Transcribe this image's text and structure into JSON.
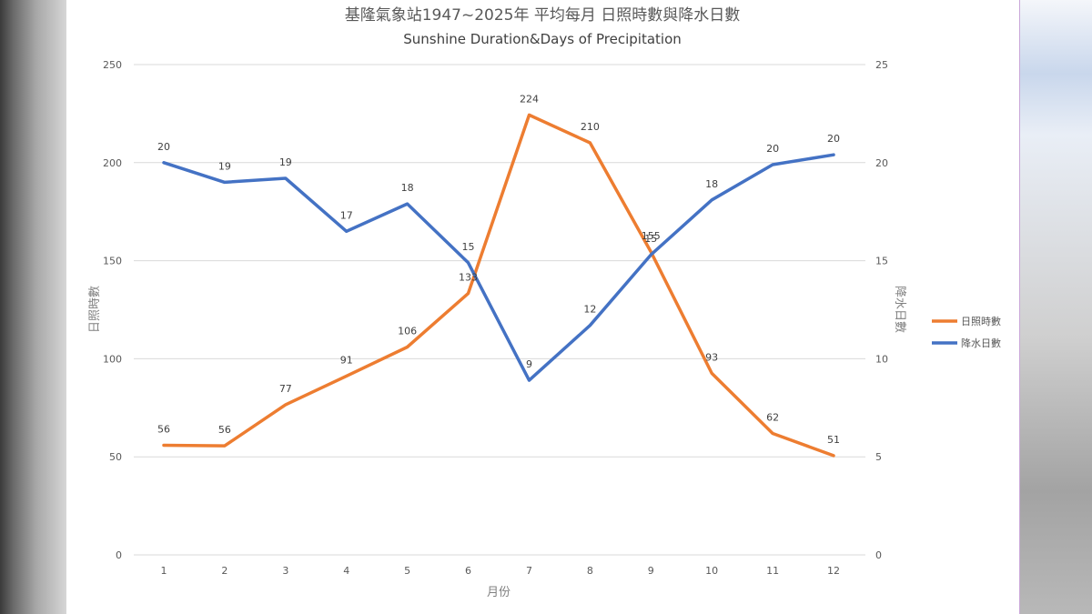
{
  "chart_data": {
    "type": "line",
    "title": "基隆氣象站1947~2025年 平均每月 日照時數與降水日數",
    "subtitle": "Sunshine Duration&Days of Precipitation",
    "xlabel": "月份",
    "ylabel_left": "日照時數",
    "ylabel_right": "降水日數",
    "categories": [
      "1",
      "2",
      "3",
      "4",
      "5",
      "6",
      "7",
      "8",
      "9",
      "10",
      "11",
      "12"
    ],
    "ylim_left": [
      0,
      250
    ],
    "ylim_right": [
      0,
      25
    ],
    "yticks_left": [
      "0",
      "50",
      "100",
      "150",
      "200",
      "250"
    ],
    "yticks_right": [
      "0",
      "5",
      "10",
      "15",
      "20",
      "25"
    ],
    "grid": true,
    "legend_position": "right",
    "series": [
      {
        "name": "日照時數",
        "axis": "left",
        "color": "#ed7d31",
        "values": [
          55.9,
          55.6,
          76.6,
          91.2,
          106.0,
          133.3,
          224.3,
          210.1,
          154.5,
          92.6,
          61.9,
          50.6
        ],
        "labels": [
          "56",
          "56",
          "77",
          "91",
          "106",
          "133",
          "224",
          "210",
          "155",
          "93",
          "62",
          "51"
        ]
      },
      {
        "name": "降水日數",
        "axis": "right",
        "color": "#4472c4",
        "values": [
          20.0,
          19.0,
          19.2,
          16.5,
          17.9,
          14.9,
          8.9,
          11.7,
          15.3,
          18.1,
          19.9,
          20.4
        ],
        "labels": [
          "20",
          "19",
          "19",
          "17",
          "18",
          "15",
          "9",
          "12",
          "15",
          "18",
          "20",
          "20"
        ]
      }
    ]
  }
}
